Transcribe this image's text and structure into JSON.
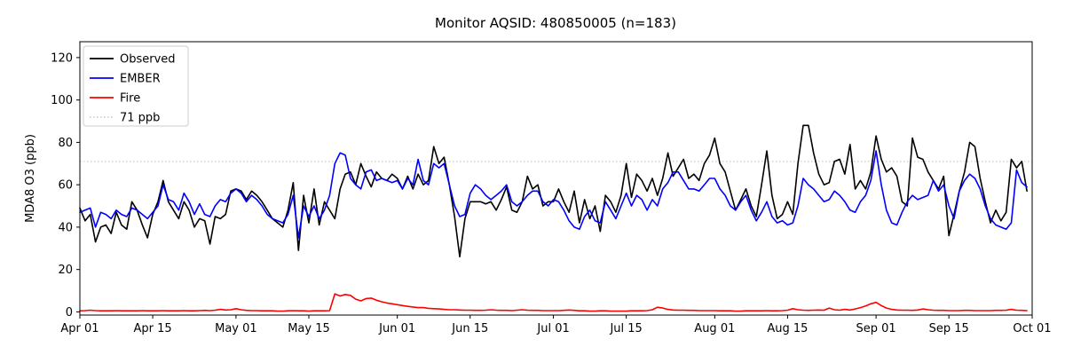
{
  "title": "Monitor AQSID: 480850005 (n=183)",
  "ylabel": "MDA8 O3 (ppb)",
  "colors": {
    "observed": "#000000",
    "ember": "#0000ff",
    "fire": "#ff0000",
    "ref_line": "#cccccc",
    "frame": "#000000",
    "background": "#ffffff"
  },
  "legend": {
    "position": "upper-left",
    "items": [
      {
        "label": "Observed",
        "color": "#000000",
        "style": "solid"
      },
      {
        "label": "EMBER",
        "color": "#0000ff",
        "style": "solid"
      },
      {
        "label": "Fire",
        "color": "#ff0000",
        "style": "solid"
      },
      {
        "label": "71 ppb",
        "color": "#cccccc",
        "style": "dotted"
      }
    ]
  },
  "chart_data": {
    "type": "line",
    "title": "Monitor AQSID: 480850005 (n=183)",
    "xlabel": "",
    "ylabel": "MDA8 O3 (ppb)",
    "x_unit": "daily values, day index 0 = Apr 01, n=183 (Apr 01 - Sep 30)",
    "xlim": [
      0,
      183
    ],
    "ylim": [
      -1.5,
      127.5
    ],
    "grid": false,
    "x_tick_days": [
      0,
      14,
      30,
      44,
      61,
      75,
      91,
      105,
      122,
      136,
      153,
      167,
      183
    ],
    "x_tick_labels": [
      "Apr 01",
      "Apr 15",
      "May 01",
      "May 15",
      "Jun 01",
      "Jun 15",
      "Jul 01",
      "Jul 15",
      "Aug 01",
      "Aug 15",
      "Sep 01",
      "Sep 15",
      "Oct 01"
    ],
    "y_ticks": [
      0,
      20,
      40,
      60,
      80,
      100,
      120
    ],
    "ref_line": {
      "value": 71,
      "label": "71 ppb",
      "style": "dotted",
      "color": "#cccccc"
    },
    "series": [
      {
        "name": "Observed",
        "color": "#000000",
        "values": [
          49,
          43,
          46,
          33,
          40,
          41,
          37,
          47,
          41,
          39,
          52,
          48,
          41,
          35,
          46,
          52,
          62,
          52,
          48,
          44,
          52,
          48,
          40,
          44,
          43,
          32,
          45,
          44,
          46,
          57,
          58,
          57,
          53,
          57,
          55,
          52,
          48,
          44,
          42,
          40,
          48,
          61,
          29,
          55,
          42,
          58,
          41,
          52,
          48,
          44,
          58,
          65,
          66,
          60,
          70,
          64,
          59,
          66,
          63,
          62,
          65,
          63,
          58,
          64,
          58,
          65,
          60,
          62,
          78,
          70,
          73,
          60,
          45,
          26,
          44,
          52,
          52,
          52,
          51,
          52,
          48,
          53,
          59,
          48,
          47,
          52,
          64,
          58,
          60,
          50,
          52,
          52,
          58,
          52,
          47,
          57,
          42,
          53,
          44,
          50,
          38,
          55,
          52,
          47,
          55,
          70,
          54,
          65,
          62,
          57,
          63,
          55,
          63,
          75,
          64,
          68,
          72,
          63,
          65,
          62,
          70,
          74,
          82,
          70,
          66,
          57,
          48,
          53,
          58,
          50,
          45,
          60,
          76,
          55,
          44,
          46,
          52,
          46,
          70,
          88,
          88,
          75,
          65,
          60,
          61,
          71,
          72,
          65,
          79,
          58,
          62,
          58,
          66,
          83,
          72,
          66,
          68,
          64,
          52,
          50,
          82,
          73,
          72,
          66,
          62,
          58,
          64,
          36,
          46,
          57,
          66,
          80,
          78,
          63,
          52,
          42,
          48,
          43,
          47,
          72,
          68,
          71,
          57
        ]
      },
      {
        "name": "EMBER",
        "color": "#0000ff",
        "values": [
          47,
          48,
          49,
          40,
          47,
          46,
          44,
          48,
          46,
          45,
          49,
          48,
          46,
          44,
          47,
          50,
          60,
          53,
          52,
          48,
          56,
          52,
          46,
          51,
          46,
          45,
          50,
          53,
          52,
          56,
          58,
          56,
          52,
          55,
          53,
          50,
          46,
          44,
          43,
          42,
          46,
          55,
          35,
          50,
          45,
          50,
          44,
          48,
          55,
          70,
          75,
          74,
          63,
          60,
          58,
          66,
          67,
          62,
          63,
          62,
          61,
          62,
          58,
          63,
          60,
          72,
          62,
          60,
          70,
          68,
          70,
          60,
          50,
          45,
          46,
          56,
          60,
          58,
          55,
          53,
          55,
          57,
          60,
          52,
          50,
          52,
          55,
          57,
          57,
          52,
          50,
          53,
          52,
          48,
          43,
          40,
          39,
          45,
          48,
          43,
          42,
          52,
          48,
          44,
          50,
          56,
          50,
          55,
          53,
          48,
          53,
          50,
          58,
          61,
          66,
          66,
          62,
          58,
          58,
          57,
          60,
          63,
          63,
          58,
          55,
          50,
          48,
          52,
          55,
          48,
          43,
          47,
          52,
          45,
          42,
          43,
          41,
          42,
          50,
          63,
          60,
          58,
          55,
          52,
          53,
          57,
          55,
          52,
          48,
          47,
          52,
          55,
          62,
          76,
          60,
          48,
          42,
          41,
          47,
          52,
          55,
          53,
          54,
          55,
          62,
          57,
          60,
          50,
          44,
          57,
          62,
          65,
          63,
          58,
          50,
          44,
          41,
          40,
          39,
          42,
          67,
          61,
          59
        ]
      },
      {
        "name": "Fire",
        "color": "#ff0000",
        "values": [
          0.5,
          0.6,
          0.8,
          0.6,
          0.5,
          0.5,
          0.5,
          0.6,
          0.5,
          0.5,
          0.5,
          0.5,
          0.6,
          0.5,
          0.5,
          0.5,
          0.6,
          0.5,
          0.5,
          0.5,
          0.6,
          0.5,
          0.5,
          0.6,
          0.7,
          0.6,
          0.8,
          1.2,
          0.9,
          1.0,
          1.5,
          1.0,
          0.7,
          0.6,
          0.6,
          0.5,
          0.5,
          0.5,
          0.4,
          0.4,
          0.5,
          0.6,
          0.5,
          0.5,
          0.4,
          0.5,
          0.5,
          0.5,
          0.6,
          8.5,
          7.5,
          8.2,
          7.8,
          6.0,
          5.2,
          6.3,
          6.5,
          5.5,
          4.8,
          4.2,
          3.8,
          3.4,
          3.0,
          2.6,
          2.3,
          2.0,
          2.0,
          1.7,
          1.5,
          1.4,
          1.2,
          1.0,
          1.0,
          0.9,
          0.8,
          0.8,
          0.7,
          0.7,
          0.8,
          1.0,
          0.8,
          0.7,
          0.7,
          0.6,
          0.8,
          1.0,
          0.8,
          0.7,
          0.7,
          0.6,
          0.6,
          0.6,
          0.6,
          0.7,
          0.9,
          0.7,
          0.5,
          0.5,
          0.4,
          0.4,
          0.5,
          0.5,
          0.4,
          0.4,
          0.4,
          0.4,
          0.5,
          0.5,
          0.5,
          0.6,
          1.0,
          2.2,
          1.8,
          1.2,
          0.9,
          0.8,
          0.8,
          0.7,
          0.7,
          0.6,
          0.6,
          0.6,
          0.6,
          0.5,
          0.5,
          0.5,
          0.4,
          0.4,
          0.5,
          0.5,
          0.5,
          0.5,
          0.6,
          0.5,
          0.5,
          0.6,
          0.8,
          1.5,
          1.0,
          0.8,
          0.7,
          0.8,
          0.9,
          0.8,
          1.8,
          1.0,
          0.8,
          1.2,
          0.9,
          1.4,
          2.0,
          2.8,
          3.8,
          4.5,
          3.0,
          1.8,
          1.2,
          0.9,
          0.8,
          0.8,
          0.7,
          0.9,
          1.4,
          1.0,
          0.8,
          0.7,
          0.7,
          0.6,
          0.6,
          0.6,
          0.7,
          0.7,
          0.6,
          0.6,
          0.6,
          0.6,
          0.7,
          0.7,
          0.8,
          1.2,
          0.8,
          0.7,
          0.6
        ]
      }
    ]
  }
}
